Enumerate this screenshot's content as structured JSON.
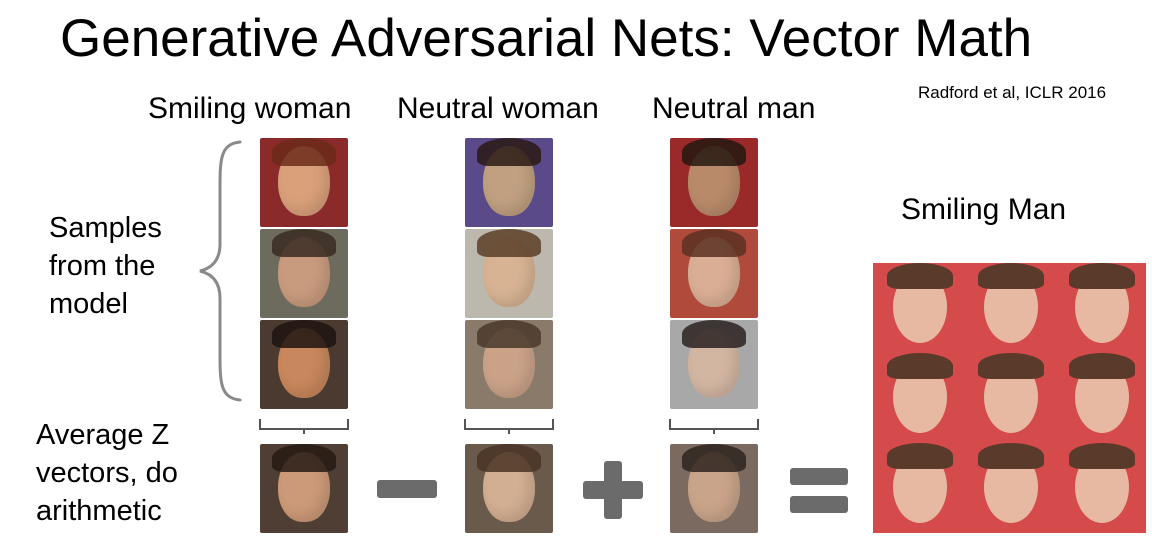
{
  "title": "Generative Adversarial Nets: Vector Math",
  "citation": "Radford et al, ICLR 2016",
  "columns": {
    "smiling_woman": "Smiling woman",
    "neutral_woman": "Neutral woman",
    "neutral_man": "Neutral man"
  },
  "samples_label": {
    "line1": "Samples",
    "line2": "from the",
    "line3": "model"
  },
  "average_label": {
    "line1": "Average Z",
    "line2": "vectors, do",
    "line3": "arithmetic"
  },
  "result_label": "Smiling Man",
  "colors": {
    "operator": "#6b6b6b",
    "brace": "#8a8a8a"
  }
}
